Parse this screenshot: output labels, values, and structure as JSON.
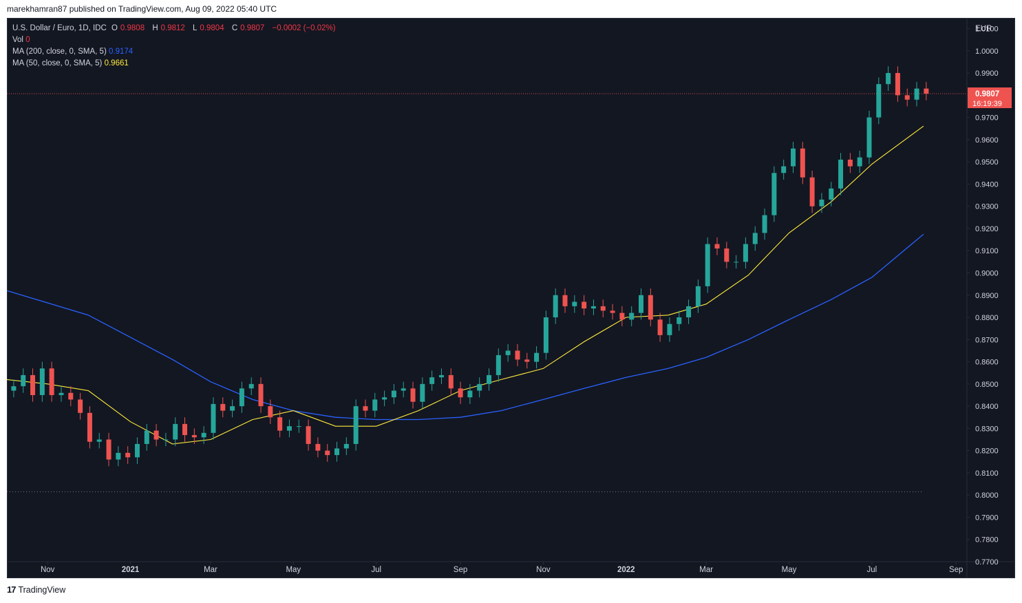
{
  "header": {
    "published_text": "marekhamran87 published on TradingView.com, Aug 09, 2022 05:40 UTC"
  },
  "legend": {
    "symbol": "U.S. Dollar / Euro, 1D, IDC",
    "open_label": "O",
    "open_value": "0.9808",
    "high_label": "H",
    "high_value": "0.9812",
    "low_label": "L",
    "low_value": "0.9804",
    "close_label": "C",
    "close_value": "0.9807",
    "change": "−0.0002 (−0.02%)",
    "vol_label": "Vol",
    "vol_value": "0",
    "ma200_label": "MA (200, close, 0, SMA, 5)",
    "ma200_value": "0.9174",
    "ma50_label": "MA (50, close, 0, SMA, 5)",
    "ma50_value": "0.9661"
  },
  "price_tag": {
    "price": "0.9807",
    "countdown": "16:19:39"
  },
  "footer": {
    "brand": "TradingView",
    "logo": "17"
  },
  "colors": {
    "background": "#131722",
    "up": "#26a69a",
    "down": "#ef5350",
    "ma200": "#2962ff",
    "ma50": "#ffeb3b",
    "text": "#d1d4dc"
  },
  "chart_data": {
    "type": "line",
    "currency": "EUR",
    "y_ticks": [
      "0.7700",
      "0.7800",
      "0.7900",
      "0.8000",
      "0.8100",
      "0.8200",
      "0.8300",
      "0.8400",
      "0.8500",
      "0.8600",
      "0.8700",
      "0.8800",
      "0.8900",
      "0.9000",
      "0.9100",
      "0.9200",
      "0.9300",
      "0.9400",
      "0.9500",
      "0.9600",
      "0.9700",
      "0.9800",
      "0.9900",
      "1.0000",
      "1.0100"
    ],
    "ylim": [
      0.77,
      1.0145
    ],
    "x_ticks": [
      {
        "label": "Nov",
        "date": "2020-11-01"
      },
      {
        "label": "2021",
        "date": "2021-01-01"
      },
      {
        "label": "Mar",
        "date": "2021-03-01"
      },
      {
        "label": "May",
        "date": "2021-05-01"
      },
      {
        "label": "Jul",
        "date": "2021-07-01"
      },
      {
        "label": "Sep",
        "date": "2021-09-01"
      },
      {
        "label": "Nov",
        "date": "2021-11-01"
      },
      {
        "label": "2022",
        "date": "2022-01-01"
      },
      {
        "label": "Mar",
        "date": "2022-03-01"
      },
      {
        "label": "May",
        "date": "2022-05-01"
      },
      {
        "label": "Jul",
        "date": "2022-07-01"
      },
      {
        "label": "Sep",
        "date": "2022-09-01"
      }
    ],
    "xlim": [
      "2020-10-02",
      "2022-09-09"
    ],
    "last_price": 0.9807,
    "reference_line": 0.8015,
    "series": [
      {
        "name": "U.S. Dollar / Euro",
        "x": [
          "2020-10-05",
          "2020-10-12",
          "2020-10-19",
          "2020-10-26",
          "2020-11-02",
          "2020-11-09",
          "2020-11-16",
          "2020-11-23",
          "2020-11-30",
          "2020-12-07",
          "2020-12-14",
          "2020-12-21",
          "2020-12-28",
          "2021-01-04",
          "2021-01-11",
          "2021-01-18",
          "2021-01-25",
          "2021-02-01",
          "2021-02-08",
          "2021-02-15",
          "2021-02-22",
          "2021-03-01",
          "2021-03-08",
          "2021-03-15",
          "2021-03-22",
          "2021-03-29",
          "2021-04-05",
          "2021-04-12",
          "2021-04-19",
          "2021-04-26",
          "2021-05-03",
          "2021-05-10",
          "2021-05-17",
          "2021-05-24",
          "2021-05-31",
          "2021-06-07",
          "2021-06-14",
          "2021-06-21",
          "2021-06-28",
          "2021-07-05",
          "2021-07-12",
          "2021-07-19",
          "2021-07-26",
          "2021-08-02",
          "2021-08-09",
          "2021-08-16",
          "2021-08-23",
          "2021-08-30",
          "2021-09-06",
          "2021-09-13",
          "2021-09-20",
          "2021-09-27",
          "2021-10-04",
          "2021-10-11",
          "2021-10-18",
          "2021-10-25",
          "2021-11-01",
          "2021-11-08",
          "2021-11-15",
          "2021-11-22",
          "2021-11-29",
          "2021-12-06",
          "2021-12-13",
          "2021-12-20",
          "2021-12-27",
          "2022-01-03",
          "2022-01-10",
          "2022-01-17",
          "2022-01-24",
          "2022-01-31",
          "2022-02-07",
          "2022-02-14",
          "2022-02-21",
          "2022-02-28",
          "2022-03-07",
          "2022-03-14",
          "2022-03-21",
          "2022-03-28",
          "2022-04-04",
          "2022-04-11",
          "2022-04-18",
          "2022-04-25",
          "2022-05-02",
          "2022-05-09",
          "2022-05-16",
          "2022-05-23",
          "2022-05-30",
          "2022-06-06",
          "2022-06-13",
          "2022-06-20",
          "2022-06-27",
          "2022-07-04",
          "2022-07-11",
          "2022-07-18",
          "2022-07-25",
          "2022-08-01",
          "2022-08-08"
        ],
        "close": [
          0.849,
          0.854,
          0.845,
          0.857,
          0.845,
          0.846,
          0.843,
          0.837,
          0.824,
          0.825,
          0.816,
          0.819,
          0.817,
          0.823,
          0.829,
          0.825,
          0.825,
          0.832,
          0.827,
          0.826,
          0.828,
          0.841,
          0.838,
          0.84,
          0.848,
          0.85,
          0.84,
          0.835,
          0.829,
          0.831,
          0.831,
          0.823,
          0.82,
          0.818,
          0.821,
          0.823,
          0.84,
          0.838,
          0.843,
          0.844,
          0.847,
          0.848,
          0.842,
          0.85,
          0.853,
          0.854,
          0.848,
          0.844,
          0.847,
          0.85,
          0.854,
          0.863,
          0.865,
          0.861,
          0.86,
          0.864,
          0.88,
          0.89,
          0.885,
          0.887,
          0.884,
          0.885,
          0.883,
          0.882,
          0.879,
          0.882,
          0.89,
          0.879,
          0.872,
          0.877,
          0.88,
          0.885,
          0.894,
          0.913,
          0.911,
          0.905,
          0.905,
          0.913,
          0.918,
          0.926,
          0.945,
          0.948,
          0.956,
          0.943,
          0.93,
          0.933,
          0.938,
          0.951,
          0.948,
          0.952,
          0.97,
          0.985,
          0.99,
          0.98,
          0.978,
          0.983,
          0.9807
        ]
      },
      {
        "name": "MA (200, close, 0, SMA, 5)",
        "x": [
          "2020-10-02",
          "2020-12-01",
          "2021-01-01",
          "2021-02-01",
          "2021-03-01",
          "2021-04-01",
          "2021-05-01",
          "2021-06-01",
          "2021-07-01",
          "2021-08-01",
          "2021-09-01",
          "2021-10-01",
          "2021-11-01",
          "2021-12-01",
          "2022-01-01",
          "2022-02-01",
          "2022-03-01",
          "2022-04-01",
          "2022-05-01",
          "2022-06-01",
          "2022-07-01",
          "2022-08-08"
        ],
        "values": [
          0.892,
          0.881,
          0.871,
          0.861,
          0.851,
          0.843,
          0.838,
          0.835,
          0.834,
          0.834,
          0.835,
          0.838,
          0.843,
          0.848,
          0.853,
          0.857,
          0.862,
          0.87,
          0.879,
          0.888,
          0.898,
          0.9174
        ]
      },
      {
        "name": "MA (50, close, 0, SMA, 5)",
        "x": [
          "2020-10-02",
          "2020-11-01",
          "2020-12-01",
          "2021-01-01",
          "2021-02-01",
          "2021-03-01",
          "2021-04-01",
          "2021-05-01",
          "2021-06-01",
          "2021-07-01",
          "2021-08-01",
          "2021-09-01",
          "2021-10-01",
          "2021-11-01",
          "2021-12-01",
          "2022-01-01",
          "2022-02-01",
          "2022-03-01",
          "2022-04-01",
          "2022-05-01",
          "2022-06-01",
          "2022-07-01",
          "2022-08-08"
        ],
        "values": [
          0.852,
          0.85,
          0.847,
          0.833,
          0.823,
          0.825,
          0.834,
          0.838,
          0.831,
          0.831,
          0.838,
          0.847,
          0.852,
          0.857,
          0.869,
          0.88,
          0.881,
          0.886,
          0.899,
          0.918,
          0.932,
          0.949,
          0.9661
        ]
      }
    ],
    "title": "",
    "xlabel": "",
    "ylabel": "EUR",
    "grid": false
  }
}
